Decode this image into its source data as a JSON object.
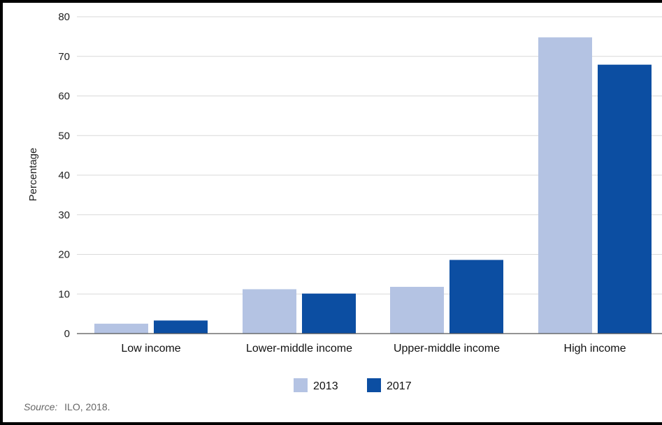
{
  "chart_data": {
    "type": "bar",
    "categories": [
      "Low income",
      "Lower-middle income",
      "Upper-middle income",
      "High income"
    ],
    "series": [
      {
        "name": "2013",
        "color": "#b4c3e3",
        "values": [
          2.5,
          11.2,
          11.8,
          74.8
        ]
      },
      {
        "name": "2017",
        "color": "#0c4ea2",
        "values": [
          3.3,
          10.1,
          18.6,
          67.9
        ]
      }
    ],
    "ylabel": "Percentage",
    "ylim": [
      0,
      80
    ],
    "yticks": [
      0,
      10,
      20,
      30,
      40,
      50,
      60,
      70,
      80
    ],
    "grid": true,
    "legend": "bottom-center"
  },
  "source": {
    "label": "Source:",
    "text": "ILO, 2018."
  }
}
